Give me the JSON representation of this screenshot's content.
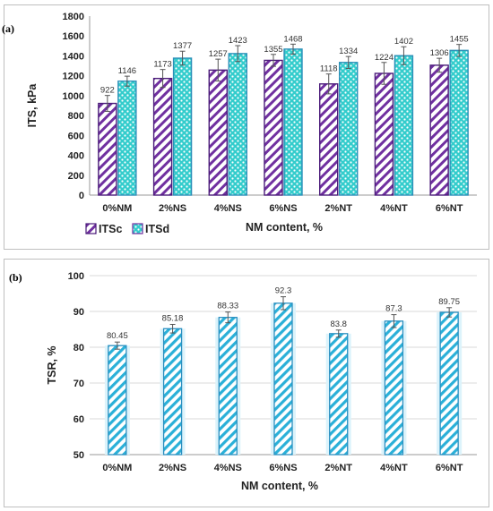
{
  "panels": {
    "a_label": "(a)",
    "b_label": "(b)"
  },
  "chart_data": [
    {
      "type": "bar",
      "title": "",
      "xlabel": "NM content, %",
      "ylabel": "ITS, kPa",
      "ylim": [
        0,
        1800
      ],
      "yticks": [
        0,
        200,
        400,
        600,
        800,
        1000,
        1200,
        1400,
        1600,
        1800
      ],
      "grid": false,
      "legend": "bottom-left",
      "categories": [
        "0%NM",
        "2%NS",
        "4%NS",
        "6%NS",
        "2%NT",
        "4%NT",
        "6%NT"
      ],
      "series": [
        {
          "name": "ITSc",
          "values": [
            922,
            1173,
            1257,
            1355,
            1118,
            1224,
            1306
          ],
          "errors": [
            80,
            90,
            110,
            60,
            100,
            110,
            70
          ],
          "color": "#7030a0",
          "pattern": "diagonal-hatch"
        },
        {
          "name": "ITSd",
          "values": [
            1146,
            1377,
            1423,
            1468,
            1334,
            1402,
            1455
          ],
          "errors": [
            50,
            70,
            80,
            50,
            60,
            90,
            60
          ],
          "color": "#33cccc",
          "pattern": "dots"
        }
      ],
      "data_labels": [
        [
          "922",
          "1173",
          "1257",
          "1355",
          "1118",
          "1224",
          "1306"
        ],
        [
          "1146",
          "1377",
          "1423",
          "1468",
          "1334",
          "1402",
          "1455"
        ]
      ]
    },
    {
      "type": "bar",
      "title": "",
      "xlabel": "NM content, %",
      "ylabel": "TSR, %",
      "ylim": [
        50,
        100
      ],
      "yticks": [
        50,
        60,
        70,
        80,
        90,
        100
      ],
      "grid": true,
      "legend": "none",
      "categories": [
        "0%NM",
        "2%NS",
        "4%NS",
        "6%NS",
        "2%NT",
        "4%NT",
        "6%NT"
      ],
      "series": [
        {
          "values": [
            80.45,
            85.18,
            88.33,
            92.3,
            83.8,
            87.3,
            89.75
          ],
          "errors": [
            1.0,
            1.2,
            1.5,
            1.8,
            1.0,
            1.8,
            1.3
          ],
          "color": "#2ab0d8",
          "pattern": "diagonal-hatch"
        }
      ],
      "data_labels": [
        "80.45",
        "85.18",
        "88.33",
        "92.3",
        "83.8",
        "87.3",
        "89.75"
      ]
    }
  ]
}
